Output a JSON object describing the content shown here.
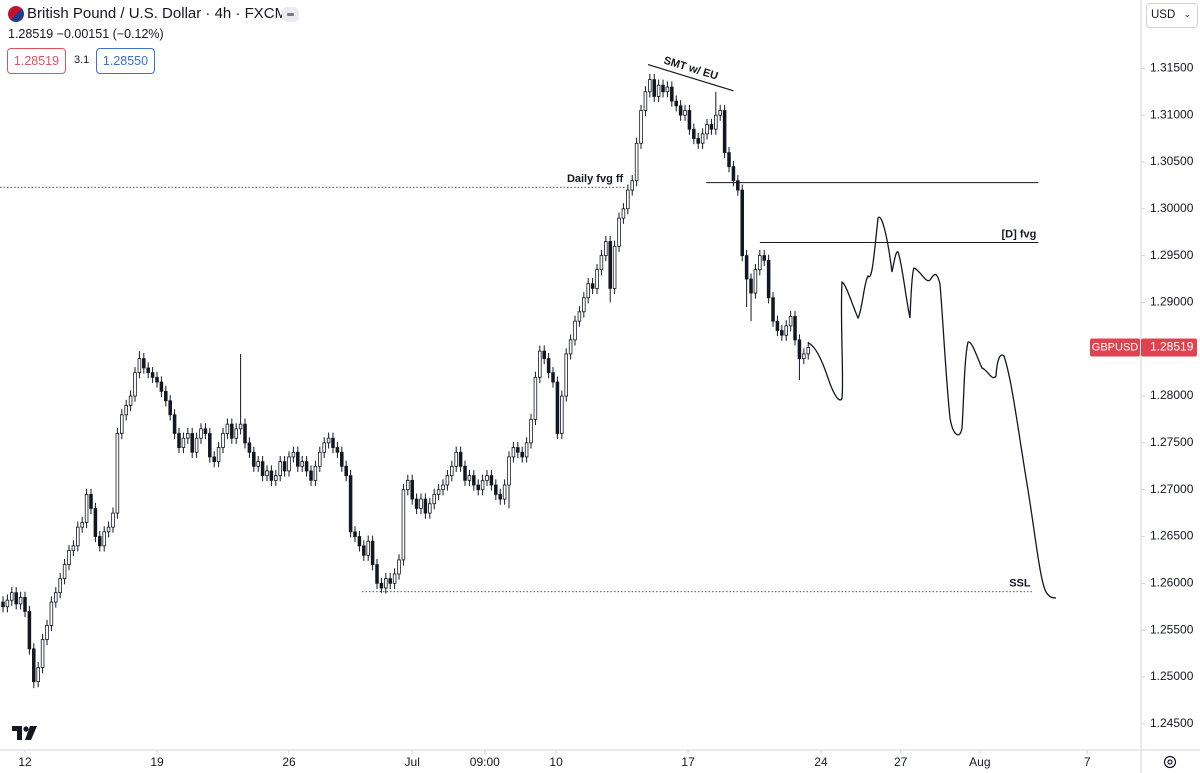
{
  "header": {
    "symbol": "British Pound / U.S. Dollar · 4h · FXCM",
    "quote": "1.28519 −0.00151 (−0.12%)",
    "sell": "1.28519",
    "spread": "3.1",
    "buy": "1.28550",
    "currency": "USD"
  },
  "chart_data": {
    "type": "candlestick",
    "up_color": "#ffffff",
    "down_color": "#131722",
    "outline_color": "#131722",
    "xlim": [
      -0.68,
      258.4
    ],
    "xticks": [
      {
        "value": 5,
        "label": "12"
      },
      {
        "value": 35,
        "label": "19"
      },
      {
        "value": 65,
        "label": "26"
      },
      {
        "value": 93,
        "label": "Jul"
      },
      {
        "value": 109.5,
        "label": "09:00"
      },
      {
        "value": 125.7,
        "label": "10"
      },
      {
        "value": 155.7,
        "label": "17"
      },
      {
        "value": 185.9,
        "label": "24"
      },
      {
        "value": 204,
        "label": "27"
      },
      {
        "value": 222,
        "label": "Aug"
      },
      {
        "value": 246.4,
        "label": "7"
      }
    ],
    "ylim": [
      1.2422,
      1.3223
    ],
    "yticks": [
      {
        "value": 1.245,
        "label": "1.24500"
      },
      {
        "value": 1.25,
        "label": "1.25000"
      },
      {
        "value": 1.255,
        "label": "1.25500"
      },
      {
        "value": 1.26,
        "label": "1.26000"
      },
      {
        "value": 1.265,
        "label": "1.26500"
      },
      {
        "value": 1.27,
        "label": "1.27000"
      },
      {
        "value": 1.275,
        "label": "1.27500"
      },
      {
        "value": 1.28,
        "label": "1.28000"
      },
      {
        "value": 1.285,
        "label": "1.28500"
      },
      {
        "value": 1.29,
        "label": "1.29000"
      },
      {
        "value": 1.295,
        "label": "1.29500"
      },
      {
        "value": 1.3,
        "label": "1.30000"
      },
      {
        "value": 1.305,
        "label": "1.30500"
      },
      {
        "value": 1.31,
        "label": "1.31000"
      },
      {
        "value": 1.315,
        "label": "1.31500"
      }
    ],
    "price_tag": {
      "symbol": "GBPUSD",
      "value": 1.28519
    },
    "levels": [
      {
        "label": "Daily fvg ff",
        "value": 1.3023,
        "from": -0.68,
        "to": 141.4,
        "style": "dotted"
      },
      {
        "value": 1.3028,
        "from": 159.8,
        "to": 235.3,
        "style": "solid"
      },
      {
        "label": "[D] fvg",
        "value": 1.2964,
        "from": 172,
        "to": 235.3,
        "style": "solid"
      },
      {
        "label": "SSL",
        "value": 1.2591,
        "from": 81.6,
        "to": 234,
        "style": "dotted"
      }
    ],
    "trendline": {
      "label": "SMT w/ EU",
      "start": [
        146.6,
        1.3154
      ],
      "end": [
        166,
        1.3126
      ]
    },
    "ohlc": [
      [
        1.258,
        1.2586,
        1.2569,
        1.2575
      ],
      [
        1.2575,
        1.2588,
        1.2569,
        1.2582
      ],
      [
        1.2582,
        1.2596,
        1.2576,
        1.259
      ],
      [
        1.259,
        1.2596,
        1.2572,
        1.2578
      ],
      [
        1.2578,
        1.2591,
        1.2572,
        1.2585
      ],
      [
        1.2585,
        1.2591,
        1.2564,
        1.257
      ],
      [
        1.257,
        1.2576,
        1.2524,
        1.253
      ],
      [
        1.253,
        1.2536,
        1.2488,
        1.2495
      ],
      [
        1.2495,
        1.2516,
        1.2489,
        1.251
      ],
      [
        1.251,
        1.2546,
        1.2504,
        1.254
      ],
      [
        1.254,
        1.2561,
        1.2534,
        1.2555
      ],
      [
        1.2555,
        1.2586,
        1.2549,
        1.258
      ],
      [
        1.258,
        1.2596,
        1.2574,
        1.259
      ],
      [
        1.259,
        1.2611,
        1.2584,
        1.2605
      ],
      [
        1.2605,
        1.2626,
        1.2599,
        1.262
      ],
      [
        1.262,
        1.2641,
        1.2614,
        1.2635
      ],
      [
        1.2635,
        1.2646,
        1.2629,
        1.264
      ],
      [
        1.264,
        1.2666,
        1.2634,
        1.266
      ],
      [
        1.266,
        1.2671,
        1.2654,
        1.2665
      ],
      [
        1.2665,
        1.2701,
        1.2659,
        1.2695
      ],
      [
        1.2695,
        1.2701,
        1.2674,
        1.268
      ],
      [
        1.268,
        1.2686,
        1.2644,
        1.265
      ],
      [
        1.265,
        1.2656,
        1.2634,
        1.264
      ],
      [
        1.264,
        1.2661,
        1.2634,
        1.2655
      ],
      [
        1.2655,
        1.2666,
        1.2649,
        1.266
      ],
      [
        1.266,
        1.2681,
        1.2654,
        1.2675
      ],
      [
        1.2675,
        1.2766,
        1.2669,
        1.276
      ],
      [
        1.276,
        1.2786,
        1.2754,
        1.278
      ],
      [
        1.278,
        1.2796,
        1.2774,
        1.279
      ],
      [
        1.279,
        1.2806,
        1.2784,
        1.28
      ],
      [
        1.28,
        1.2831,
        1.2794,
        1.2825
      ],
      [
        1.2825,
        1.2848,
        1.2819,
        1.284
      ],
      [
        1.284,
        1.2846,
        1.2824,
        1.283
      ],
      [
        1.283,
        1.2836,
        1.2819,
        1.2825
      ],
      [
        1.2825,
        1.2831,
        1.2814,
        1.282
      ],
      [
        1.282,
        1.2826,
        1.2809,
        1.2815
      ],
      [
        1.2815,
        1.2821,
        1.2799,
        1.2805
      ],
      [
        1.2805,
        1.2811,
        1.2789,
        1.2795
      ],
      [
        1.2795,
        1.2801,
        1.2774,
        1.278
      ],
      [
        1.278,
        1.2786,
        1.2754,
        1.276
      ],
      [
        1.276,
        1.2766,
        1.2739,
        1.2745
      ],
      [
        1.2745,
        1.2761,
        1.2739,
        1.2755
      ],
      [
        1.2755,
        1.2766,
        1.2749,
        1.276
      ],
      [
        1.276,
        1.2766,
        1.2734,
        1.274
      ],
      [
        1.274,
        1.2761,
        1.2734,
        1.2755
      ],
      [
        1.2755,
        1.2771,
        1.2749,
        1.2765
      ],
      [
        1.2765,
        1.2771,
        1.2754,
        1.276
      ],
      [
        1.276,
        1.2766,
        1.2729,
        1.2735
      ],
      [
        1.2735,
        1.2741,
        1.2724,
        1.273
      ],
      [
        1.273,
        1.2751,
        1.2724,
        1.2745
      ],
      [
        1.2745,
        1.2766,
        1.2739,
        1.276
      ],
      [
        1.276,
        1.2776,
        1.2754,
        1.277
      ],
      [
        1.277,
        1.2776,
        1.2749,
        1.2755
      ],
      [
        1.2755,
        1.2771,
        1.2749,
        1.2765
      ],
      [
        1.2765,
        1.2845,
        1.2759,
        1.277
      ],
      [
        1.277,
        1.2776,
        1.2744,
        1.275
      ],
      [
        1.275,
        1.2756,
        1.2734,
        1.274
      ],
      [
        1.274,
        1.2746,
        1.2719,
        1.2725
      ],
      [
        1.2725,
        1.2736,
        1.2719,
        1.273
      ],
      [
        1.273,
        1.2736,
        1.2709,
        1.2715
      ],
      [
        1.2715,
        1.2726,
        1.2709,
        1.272
      ],
      [
        1.272,
        1.2726,
        1.2704,
        1.271
      ],
      [
        1.271,
        1.2721,
        1.2704,
        1.2715
      ],
      [
        1.2715,
        1.2736,
        1.2709,
        1.273
      ],
      [
        1.273,
        1.2736,
        1.2714,
        1.272
      ],
      [
        1.272,
        1.2741,
        1.2714,
        1.2735
      ],
      [
        1.2735,
        1.2746,
        1.2729,
        1.274
      ],
      [
        1.274,
        1.2746,
        1.2719,
        1.2725
      ],
      [
        1.2725,
        1.2736,
        1.2719,
        1.273
      ],
      [
        1.273,
        1.2736,
        1.2714,
        1.272
      ],
      [
        1.272,
        1.2726,
        1.2704,
        1.271
      ],
      [
        1.271,
        1.2731,
        1.2704,
        1.2725
      ],
      [
        1.2725,
        1.2746,
        1.2719,
        1.274
      ],
      [
        1.274,
        1.2756,
        1.2734,
        1.275
      ],
      [
        1.275,
        1.2761,
        1.2744,
        1.2755
      ],
      [
        1.2755,
        1.2761,
        1.2739,
        1.2745
      ],
      [
        1.2745,
        1.2751,
        1.2734,
        1.274
      ],
      [
        1.274,
        1.2746,
        1.2719,
        1.2725
      ],
      [
        1.2725,
        1.2731,
        1.2709,
        1.2715
      ],
      [
        1.2715,
        1.2721,
        1.2649,
        1.2655
      ],
      [
        1.2655,
        1.2661,
        1.2644,
        1.265
      ],
      [
        1.265,
        1.2656,
        1.2634,
        1.264
      ],
      [
        1.264,
        1.2646,
        1.2624,
        1.263
      ],
      [
        1.263,
        1.2651,
        1.2624,
        1.2645
      ],
      [
        1.2645,
        1.2651,
        1.2614,
        1.262
      ],
      [
        1.262,
        1.2626,
        1.2594,
        1.26
      ],
      [
        1.26,
        1.2606,
        1.259,
        1.2595
      ],
      [
        1.2595,
        1.2611,
        1.2589,
        1.2605
      ],
      [
        1.2605,
        1.2611,
        1.2594,
        1.26
      ],
      [
        1.26,
        1.2616,
        1.2594,
        1.261
      ],
      [
        1.261,
        1.2631,
        1.2604,
        1.2625
      ],
      [
        1.2625,
        1.2706,
        1.2619,
        1.27
      ],
      [
        1.27,
        1.2716,
        1.2694,
        1.271
      ],
      [
        1.271,
        1.2716,
        1.2684,
        1.269
      ],
      [
        1.269,
        1.2696,
        1.2674,
        1.268
      ],
      [
        1.268,
        1.2696,
        1.2674,
        1.269
      ],
      [
        1.269,
        1.2696,
        1.2669,
        1.2675
      ],
      [
        1.2675,
        1.2691,
        1.2669,
        1.2685
      ],
      [
        1.2685,
        1.2701,
        1.2679,
        1.2695
      ],
      [
        1.2695,
        1.2706,
        1.2689,
        1.27
      ],
      [
        1.27,
        1.2711,
        1.2694,
        1.2705
      ],
      [
        1.2705,
        1.2721,
        1.2699,
        1.2715
      ],
      [
        1.2715,
        1.2731,
        1.2709,
        1.2725
      ],
      [
        1.2725,
        1.2746,
        1.2719,
        1.274
      ],
      [
        1.274,
        1.2746,
        1.2719,
        1.2725
      ],
      [
        1.2725,
        1.2731,
        1.2704,
        1.271
      ],
      [
        1.271,
        1.2721,
        1.2704,
        1.2715
      ],
      [
        1.2715,
        1.2721,
        1.2699,
        1.2705
      ],
      [
        1.2705,
        1.2711,
        1.2694,
        1.27
      ],
      [
        1.27,
        1.2716,
        1.2694,
        1.271
      ],
      [
        1.271,
        1.2721,
        1.2704,
        1.2715
      ],
      [
        1.2715,
        1.2721,
        1.2699,
        1.2705
      ],
      [
        1.2705,
        1.2711,
        1.2689,
        1.2695
      ],
      [
        1.2695,
        1.2701,
        1.2684,
        1.269
      ],
      [
        1.269,
        1.2711,
        1.2684,
        1.2705
      ],
      [
        1.2705,
        1.2741,
        1.268,
        1.2735
      ],
      [
        1.2735,
        1.2751,
        1.2729,
        1.2745
      ],
      [
        1.2745,
        1.2751,
        1.2734,
        1.274
      ],
      [
        1.274,
        1.2746,
        1.2729,
        1.2735
      ],
      [
        1.2735,
        1.2756,
        1.2729,
        1.275
      ],
      [
        1.275,
        1.2781,
        1.2744,
        1.2775
      ],
      [
        1.2775,
        1.2826,
        1.2769,
        1.282
      ],
      [
        1.282,
        1.2854,
        1.2814,
        1.2848
      ],
      [
        1.2848,
        1.2854,
        1.2834,
        1.284
      ],
      [
        1.284,
        1.2846,
        1.2819,
        1.2825
      ],
      [
        1.2825,
        1.2831,
        1.2809,
        1.2815
      ],
      [
        1.2815,
        1.2821,
        1.2754,
        1.276
      ],
      [
        1.276,
        1.2806,
        1.2754,
        1.28
      ],
      [
        1.28,
        1.2851,
        1.2794,
        1.2845
      ],
      [
        1.2845,
        1.2866,
        1.2839,
        1.286
      ],
      [
        1.286,
        1.2886,
        1.2854,
        1.288
      ],
      [
        1.288,
        1.2896,
        1.2874,
        1.289
      ],
      [
        1.289,
        1.2911,
        1.2884,
        1.2905
      ],
      [
        1.2905,
        1.2926,
        1.2899,
        1.292
      ],
      [
        1.292,
        1.2926,
        1.2909,
        1.2915
      ],
      [
        1.2915,
        1.2941,
        1.2909,
        1.2935
      ],
      [
        1.2935,
        1.2956,
        1.2929,
        1.295
      ],
      [
        1.295,
        1.2971,
        1.2944,
        1.2965
      ],
      [
        1.2965,
        1.2971,
        1.29,
        1.2915
      ],
      [
        1.2915,
        1.2966,
        1.2909,
        1.296
      ],
      [
        1.296,
        1.2996,
        1.2954,
        1.299
      ],
      [
        1.299,
        1.3006,
        1.2984,
        1.3
      ],
      [
        1.3,
        1.3026,
        1.2994,
        1.302
      ],
      [
        1.302,
        1.3036,
        1.3014,
        1.303
      ],
      [
        1.303,
        1.3076,
        1.3024,
        1.307
      ],
      [
        1.307,
        1.3111,
        1.3064,
        1.3105
      ],
      [
        1.3105,
        1.3131,
        1.3099,
        1.3125
      ],
      [
        1.3125,
        1.3144,
        1.3119,
        1.3138
      ],
      [
        1.3138,
        1.3144,
        1.3114,
        1.312
      ],
      [
        1.312,
        1.3138,
        1.3114,
        1.3132
      ],
      [
        1.3132,
        1.3138,
        1.3119,
        1.3125
      ],
      [
        1.3125,
        1.3136,
        1.3119,
        1.313
      ],
      [
        1.313,
        1.3136,
        1.3109,
        1.3115
      ],
      [
        1.3115,
        1.3121,
        1.3104,
        1.311
      ],
      [
        1.311,
        1.3116,
        1.3094,
        1.31
      ],
      [
        1.31,
        1.3111,
        1.3094,
        1.3105
      ],
      [
        1.3105,
        1.3111,
        1.3079,
        1.3085
      ],
      [
        1.3085,
        1.3091,
        1.3069,
        1.3075
      ],
      [
        1.3075,
        1.3081,
        1.3064,
        1.307
      ],
      [
        1.307,
        1.3086,
        1.3064,
        1.308
      ],
      [
        1.308,
        1.3096,
        1.3074,
        1.309
      ],
      [
        1.309,
        1.3096,
        1.3079,
        1.3085
      ],
      [
        1.3085,
        1.3125,
        1.3079,
        1.31
      ],
      [
        1.31,
        1.3111,
        1.3094,
        1.3105
      ],
      [
        1.3105,
        1.3111,
        1.3054,
        1.306
      ],
      [
        1.306,
        1.3066,
        1.3039,
        1.3045
      ],
      [
        1.3045,
        1.3051,
        1.3024,
        1.303
      ],
      [
        1.303,
        1.3036,
        1.3014,
        1.302
      ],
      [
        1.302,
        1.3026,
        1.2944,
        1.295
      ],
      [
        1.295,
        1.2956,
        1.2895,
        1.2925
      ],
      [
        1.2925,
        1.2931,
        1.288,
        1.291
      ],
      [
        1.291,
        1.2941,
        1.2904,
        1.2935
      ],
      [
        1.2935,
        1.2956,
        1.2929,
        1.295
      ],
      [
        1.295,
        1.2956,
        1.2939,
        1.2945
      ],
      [
        1.2945,
        1.2951,
        1.2899,
        1.2905
      ],
      [
        1.2905,
        1.2911,
        1.2874,
        1.288
      ],
      [
        1.288,
        1.2886,
        1.2864,
        1.287
      ],
      [
        1.287,
        1.2876,
        1.2859,
        1.2865
      ],
      [
        1.2865,
        1.2881,
        1.2859,
        1.2875
      ],
      [
        1.2875,
        1.2891,
        1.2869,
        1.2885
      ],
      [
        1.2885,
        1.2891,
        1.2854,
        1.286
      ],
      [
        1.286,
        1.2866,
        1.2817,
        1.284
      ],
      [
        1.284,
        1.2851,
        1.2834,
        1.2845
      ],
      [
        1.2845,
        1.2858,
        1.2839,
        1.28519
      ]
    ]
  }
}
